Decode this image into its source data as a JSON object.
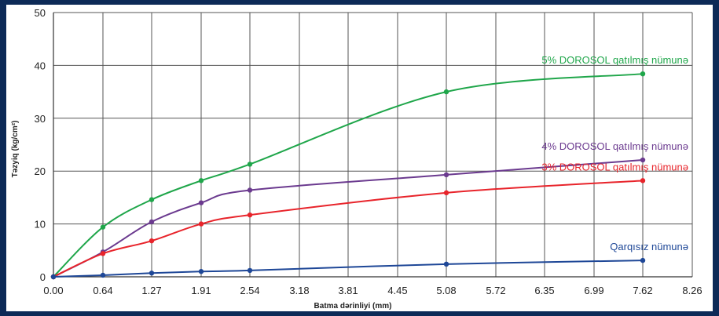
{
  "chart_data": {
    "type": "line",
    "title": "",
    "xlabel": "Batma dərinliyi (mm)",
    "ylabel": "Təzyiq (kg/cm²)",
    "x_ticks": [
      "0.00",
      "0.64",
      "1.27",
      "1.91",
      "2.54",
      "3.18",
      "3.81",
      "4.45",
      "5.08",
      "5.72",
      "6.35",
      "6.99",
      "7.62",
      "8.26"
    ],
    "y_ticks": [
      "0",
      "10",
      "20",
      "30",
      "40",
      "50"
    ],
    "xlim": [
      0,
      8.26
    ],
    "ylim": [
      0,
      50
    ],
    "grid": true,
    "series": [
      {
        "name": "5% DOROSOL qatılmış nümunə",
        "color": "#1fa64a",
        "x": [
          0,
          0.64,
          1.27,
          1.91,
          2.54,
          5.08,
          7.62
        ],
        "y": [
          0,
          9.4,
          14.6,
          18.2,
          21.3,
          35.0,
          38.4
        ]
      },
      {
        "name": "4% DOROSOL qatılmış nümunə",
        "color": "#6b3a8f",
        "x": [
          0,
          0.64,
          1.27,
          1.91,
          2.54,
          5.08,
          7.62
        ],
        "y": [
          0,
          4.7,
          10.4,
          14.0,
          16.4,
          19.3,
          22.1
        ]
      },
      {
        "name": "3% DOROSOL qatılmış nümunə",
        "color": "#e8242b",
        "x": [
          0,
          0.64,
          1.27,
          1.91,
          2.54,
          5.08,
          7.62
        ],
        "y": [
          0,
          4.4,
          6.8,
          10.0,
          11.7,
          15.9,
          18.2
        ]
      },
      {
        "name": "Qarqısız nümunə",
        "color": "#1e4797",
        "x": [
          0,
          0.64,
          1.27,
          1.91,
          2.54,
          5.08,
          7.62
        ],
        "y": [
          0,
          0.3,
          0.7,
          1.0,
          1.2,
          2.4,
          3.1
        ]
      }
    ]
  }
}
